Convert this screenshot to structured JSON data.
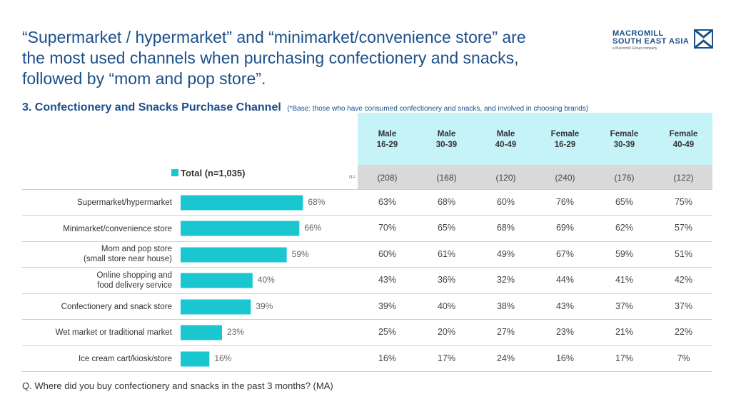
{
  "title_lines": [
    "“Supermarket / hypermarket” and “minimarket/convenience store” are",
    "the most used channels when purchasing confectionery and snacks,",
    "followed by “mom and pop store”."
  ],
  "logo": {
    "line1": "MACROMILL",
    "line2": "SOUTH EAST ASIA",
    "line3": "a Macromill Group company"
  },
  "subtitle": "3. Confectionery and Snacks Purchase Channel",
  "subtitle_note": "(*Base: those who have consumed confectionery and snacks, and involved in choosing brands)",
  "n_label": "n=",
  "footer": "Q. Where did you buy confectionery and snacks in the past 3 months? (MA)",
  "colors": {
    "bar": "#1ac6d0",
    "header_cyan": "#c5f3f8",
    "header_gray": "#d9d9d9",
    "title": "#1b4f8a"
  },
  "chart_data": {
    "type": "bar",
    "orientation": "horizontal",
    "title": "3. Confectionery and Snacks Purchase Channel",
    "legend": "Total (n=1,035)",
    "unit": "%",
    "categories": [
      [
        "Supermarket/hypermarket"
      ],
      [
        "Minimarket/convenience store"
      ],
      [
        "Mom and pop store",
        "(small store near house)"
      ],
      [
        "Online shopping and",
        "food delivery service"
      ],
      [
        "Confectionery and snack store"
      ],
      [
        "Wet market or traditional market"
      ],
      [
        "Ice cream cart/kiosk/store"
      ]
    ],
    "values": [
      68,
      66,
      59,
      40,
      39,
      23,
      16
    ],
    "xlim": [
      0,
      100
    ],
    "table": {
      "columns": [
        [
          "Male",
          "16-29"
        ],
        [
          "Male",
          "30-39"
        ],
        [
          "Male",
          "40-49"
        ],
        [
          "Female",
          "16-29"
        ],
        [
          "Female",
          "30-39"
        ],
        [
          "Female",
          "40-49"
        ]
      ],
      "n": [
        "(208)",
        "(168)",
        "(120)",
        "(240)",
        "(176)",
        "(122)"
      ],
      "rows": [
        [
          63,
          68,
          60,
          76,
          65,
          75
        ],
        [
          70,
          65,
          68,
          69,
          62,
          57
        ],
        [
          60,
          61,
          49,
          67,
          59,
          51
        ],
        [
          43,
          36,
          32,
          44,
          41,
          42
        ],
        [
          39,
          40,
          38,
          43,
          37,
          37
        ],
        [
          25,
          20,
          27,
          23,
          21,
          22
        ],
        [
          16,
          17,
          24,
          16,
          17,
          7
        ]
      ]
    }
  }
}
